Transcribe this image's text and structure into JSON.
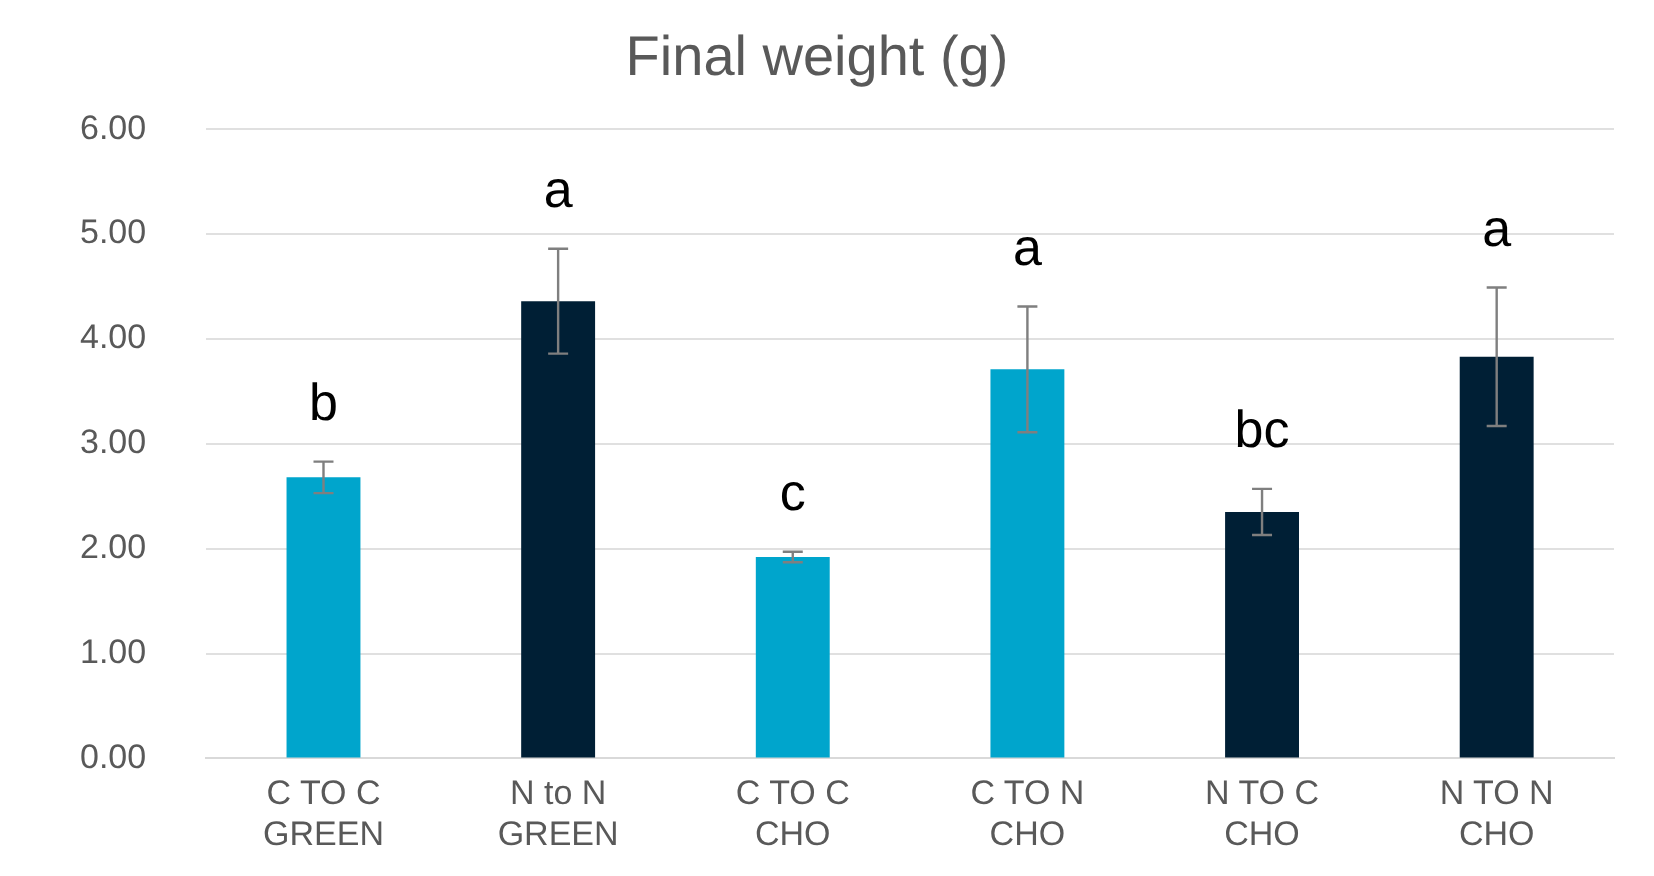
{
  "chart_data": {
    "type": "bar",
    "title": "Final weight (g)",
    "categories": [
      "C TO C\nGREEN",
      "N to N\nGREEN",
      "C TO C\nCHO",
      "C TO N\nCHO",
      "N TO C\nCHO",
      "N TO N\nCHO"
    ],
    "values": [
      2.68,
      4.36,
      1.92,
      3.71,
      2.35,
      3.83
    ],
    "errors": [
      0.15,
      0.5,
      0.05,
      0.6,
      0.22,
      0.66
    ],
    "colors": [
      "#00a5cc",
      "#001f35",
      "#00a5cc",
      "#00a5cc",
      "#001f35",
      "#001f35"
    ],
    "ylim": [
      0,
      6
    ],
    "yticks": [
      {
        "value": 0,
        "label": "0.00"
      },
      {
        "value": 1,
        "label": "1.00"
      },
      {
        "value": 2,
        "label": "2.00"
      },
      {
        "value": 3,
        "label": "3.00"
      },
      {
        "value": 4,
        "label": "4.00"
      },
      {
        "value": 5,
        "label": "5.00"
      },
      {
        "value": 6,
        "label": "6.00"
      }
    ],
    "grid": "y",
    "annotations": [
      "b",
      "a",
      "c",
      "a",
      "bc",
      "a"
    ]
  }
}
